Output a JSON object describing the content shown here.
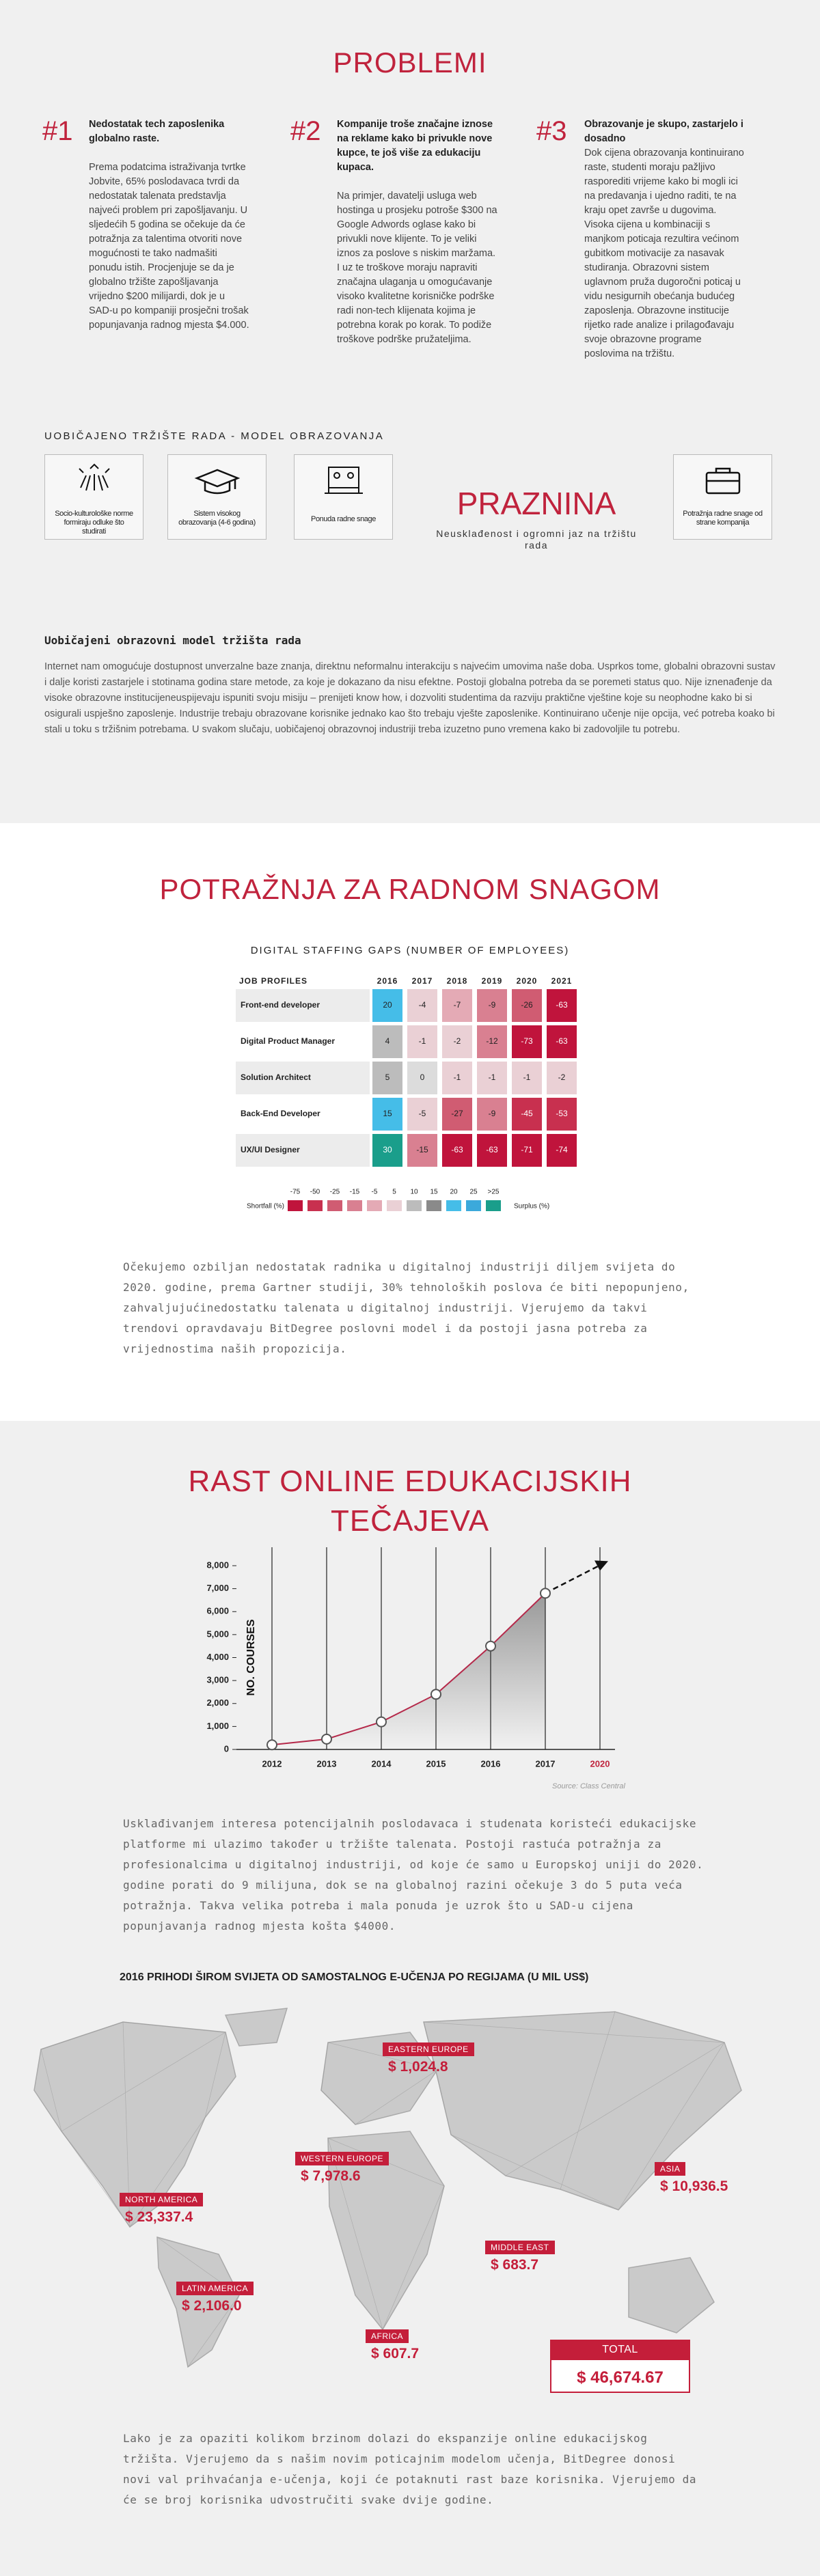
{
  "problems": {
    "title": "PROBLEMI",
    "items": [
      {
        "number": "#1",
        "heading": "Nedostatak tech zaposlenika globalno raste.",
        "body": "Prema podatcima istraživanja tvrtke Jobvite, 65% poslodavaca tvrdi da nedostatak talenata predstavlja najveći problem pri zapošljavanju. U sljedećih 5 godina se očekuje da će potražnja za talentima otvoriti nove mogućnosti te tako nadmašiti ponudu istih. Procjenjuje se da je globalno tržište zapošljavanja vrijedno $200 milijardi, dok je u SAD-u po kompaniji prosječni trošak popunjavanja radnog mjesta $4.000."
      },
      {
        "number": "#2",
        "heading": "Kompanije troše značajne iznose na reklame kako bi privukle nove kupce, te još više za edukaciju kupaca.",
        "body": "Na primjer, davatelji usluga web hostinga u prosjeku potroše $300 na Google Adwords oglase kako bi privukli nove klijente. To je veliki iznos za poslove s niskim maržama. I uz te troškove moraju napraviti značajna ulaganja u omogućavanje visoko kvalitetne korisničke podrške radi non-tech klijenata kojima je potrebna korak po korak. To podiže troškove podrške pružateljima."
      },
      {
        "number": "#3",
        "heading": "Obrazovanje je skupo, zastarjelo i dosadno",
        "body": "Dok cijena obrazovanja kontinuirano raste, studenti moraju pažljivo rasporediti vrijeme kako bi mogli ici na predavanja i ujedno raditi, te na kraju opet završe u dugovima. Visoka cijena u kombinaciji s manjkom poticaja rezultira većinom gubitkom motivacije za nasavak studiranja. Obrazovni sistem uglavnom pruža dugoročni poticaj u vidu nesigurnih obećanja budućeg zaposlenja. Obrazovne institucije rijetko rade analize i prilagođavaju svoje obrazovne programe poslovima na tržištu."
      }
    ]
  },
  "market_model": {
    "title": "UOBIČAJENO TRŽIŠTE RADA - MODEL OBRAZOVANJA",
    "cards": [
      "Socio-kulturološke norme formiraju odluke što studirati",
      "Sistem visokog obrazovanja (4-6 godina)",
      "Ponuda radne snage",
      "Potražnja radne snage od strane kompanija"
    ],
    "gap_title": "PRAZNINA",
    "gap_subtitle": "Neusklađenost i ogromni jaz na tržištu rada",
    "heading": "Uobičajeni obrazovni model tržišta rada",
    "paragraph": "Internet nam omogućuje dostupnost unverzalne baze znanja, direktnu neformalnu interakciju s najvećim umovima naše doba. Usprkos tome, globalni obrazovni sustav i dalje koristi zastarjele i stotinama godina stare metode, za koje je dokazano da nisu efektne. Postoji globalna potreba da se poremeti status quo. Nije iznenađenje da visoke obrazovne institucijeneuspijevaju ispuniti svoju misiju – prenijeti know how, i dozvoliti studentima da razviju praktične vještine koje su neophodne kako bi si osigurali uspješno zaposlenje. Industrije trebaju obrazovane korisnike jednako kao što trebaju vješte zaposlenike. Kontinuirano učenje nije opcija, već potreba koako bi stali u toku s tržišnim potrebama. U svakom slučaju, uobičajenoj obrazovnoj industriji treba izuzetno puno vremena kako bi zadovoljile tu potrebu."
  },
  "demand": {
    "title": "POTRAŽNJA ZA RADNOM SNAGOM",
    "table": {
      "title": "DIGITAL STAFFING GAPS (NUMBER OF EMPLOYEES)",
      "header": [
        "JOB PROFILES",
        "2016",
        "2017",
        "2018",
        "2019",
        "2020",
        "2021"
      ],
      "rows": [
        {
          "label": "Front-end developer",
          "cells": [
            20,
            -4,
            -7,
            -9,
            -26,
            -63
          ],
          "colors": [
            "#45bde8",
            "#ead0d5",
            "#e4aab5",
            "#d98091",
            "#d05c72",
            "#c0143c"
          ]
        },
        {
          "label": "Digital Product Manager",
          "cells": [
            4,
            -1,
            -2,
            -12,
            -73,
            -63
          ],
          "colors": [
            "#bcbcbc",
            "#ead0d5",
            "#ead0d5",
            "#d98091",
            "#c0143c",
            "#c0143c"
          ]
        },
        {
          "label": "Solution Architect",
          "cells": [
            5,
            0,
            -1,
            -1,
            -1,
            -2
          ],
          "colors": [
            "#bcbcbc",
            "#dcdcdc",
            "#ead0d5",
            "#ead0d5",
            "#ead0d5",
            "#ead0d5"
          ]
        },
        {
          "label": "Back-End Developer",
          "cells": [
            15,
            -5,
            -27,
            -9,
            -45,
            -53
          ],
          "colors": [
            "#45bde8",
            "#ead0d5",
            "#d05c72",
            "#d98091",
            "#c8304f",
            "#c8304f"
          ]
        },
        {
          "label": "UX/UI Designer",
          "cells": [
            30,
            -15,
            -63,
            -63,
            -71,
            -74
          ],
          "colors": [
            "#1a9e8b",
            "#d98091",
            "#c0143c",
            "#c0143c",
            "#c0143c",
            "#c0143c"
          ]
        }
      ]
    },
    "legend": {
      "labels": [
        "-75",
        "-50",
        "-25",
        "-15",
        "-5",
        "5",
        "10",
        "15",
        "20",
        "25",
        ">25"
      ],
      "colors": [
        "#c0143c",
        "#c8304f",
        "#d05c72",
        "#d98091",
        "#e4aab5",
        "#ead0d5",
        "#bcbcbc",
        "#8a8a8a",
        "#45bde8",
        "#3ba9db",
        "#1a9e8b"
      ],
      "shortfall": "Shortfall (%)",
      "surplus": "Surplus (%)"
    },
    "paragraph": "Očekujemo ozbiljan nedostatak radnika u digitalnoj industriji diljem svijeta do 2020. godine, prema Gartner studiji, 30% tehnoloških poslova će biti nepopunjeno, zahvaljujućinedostatku talenata u digitalnoj industriji. Vjerujemo da takvi trendovi opravdavaju BitDegree poslovni model i da postoji jasna potreba za vrijednostima naših propozicija."
  },
  "chart_data": {
    "type": "line",
    "title": "RAST ONLINE EDUKACIJSKIH TEČAJEVA",
    "y_label": "NO. COURSES",
    "categories": [
      "2012",
      "2013",
      "2014",
      "2015",
      "2016",
      "2017",
      "2020"
    ],
    "values": [
      200,
      450,
      1200,
      2400,
      4500,
      6800,
      null
    ],
    "color": "#b5294a",
    "ylim": [
      0,
      8000
    ],
    "yticks": [
      0,
      {
        "value": 1000,
        "label": "1,000"
      },
      {
        "value": 2000,
        "label": "2,000"
      },
      {
        "value": 3000,
        "label": "3,000"
      },
      {
        "value": 4000,
        "label": "4,000"
      },
      {
        "value": 5000,
        "label": "5,000"
      },
      {
        "value": 6000,
        "label": "6,000"
      },
      {
        "value": 7000,
        "label": "7,000"
      },
      {
        "value": 8000,
        "label": "8,000"
      }
    ],
    "source": "Source: Class Central"
  },
  "growth": {
    "paragraph": "Usklađivanjem interesa potencijalnih poslodavaca i studenata koristeći edukacijske platforme mi ulazimo također u tržište talenata. Postoji rastuća potražnja za profesionalcima u digitalnoj industriji, od koje će samo u Europskoj uniji do 2020. godine porati do 9 milijuna, dok se na globalnoj razini očekuje 3 do 5 puta veća potražnja. Takva velika potreba i mala ponuda je uzrok što u SAD-u cijena popunjavanja radnog mjesta košta $4000."
  },
  "revenue": {
    "title": "2016 PRIHODI ŠIROM SVIJETA OD SAMOSTALNOG E-UČENJA PO REGIJAMA (U MIL US$)",
    "regions": [
      {
        "name": "EASTERN EUROPE",
        "value": "$ 1,024.8"
      },
      {
        "name": "WESTERN EUROPE",
        "value": "$ 7,978.6"
      },
      {
        "name": "NORTH AMERICA",
        "value": "$ 23,337.4"
      },
      {
        "name": "ASIA",
        "value": "$ 10,936.5"
      },
      {
        "name": "MIDDLE EAST",
        "value": "$ 683.7"
      },
      {
        "name": "LATIN AMERICA",
        "value": "$ 2,106.0"
      },
      {
        "name": "AFRICA",
        "value": "$ 607.7"
      }
    ],
    "total": {
      "name": "TOTAL",
      "value": "$ 46,674.67"
    },
    "paragraph": "Lako je za opaziti kolikom brzinom dolazi do ekspanzije online edukacijskog tržišta. Vjerujemo da s našim novim poticajnim modelom učenja, BitDegree donosi novi val prihvaćanja e-učenja, koji će potaknuti rast baze korisnika. Vjerujemo da će se broj korisnika udvostručiti svake dvije godine."
  }
}
